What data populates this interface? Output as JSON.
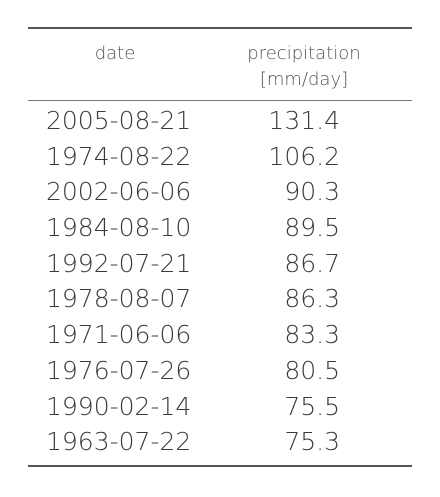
{
  "table": {
    "headers": {
      "date": "date",
      "precip_line1": "precipitation",
      "precip_line2": "[mm/day]"
    },
    "rows": [
      {
        "date": "2005-08-21",
        "value": "131.4"
      },
      {
        "date": "1974-08-22",
        "value": "106.2"
      },
      {
        "date": "2002-06-06",
        "value": "90.3"
      },
      {
        "date": "1984-08-10",
        "value": "89.5"
      },
      {
        "date": "1992-07-21",
        "value": "86.7"
      },
      {
        "date": "1978-08-07",
        "value": "86.3"
      },
      {
        "date": "1971-06-06",
        "value": "83.3"
      },
      {
        "date": "1976-07-26",
        "value": "80.5"
      },
      {
        "date": "1990-02-14",
        "value": "75.5"
      },
      {
        "date": "1963-07-22",
        "value": "75.3"
      }
    ]
  }
}
